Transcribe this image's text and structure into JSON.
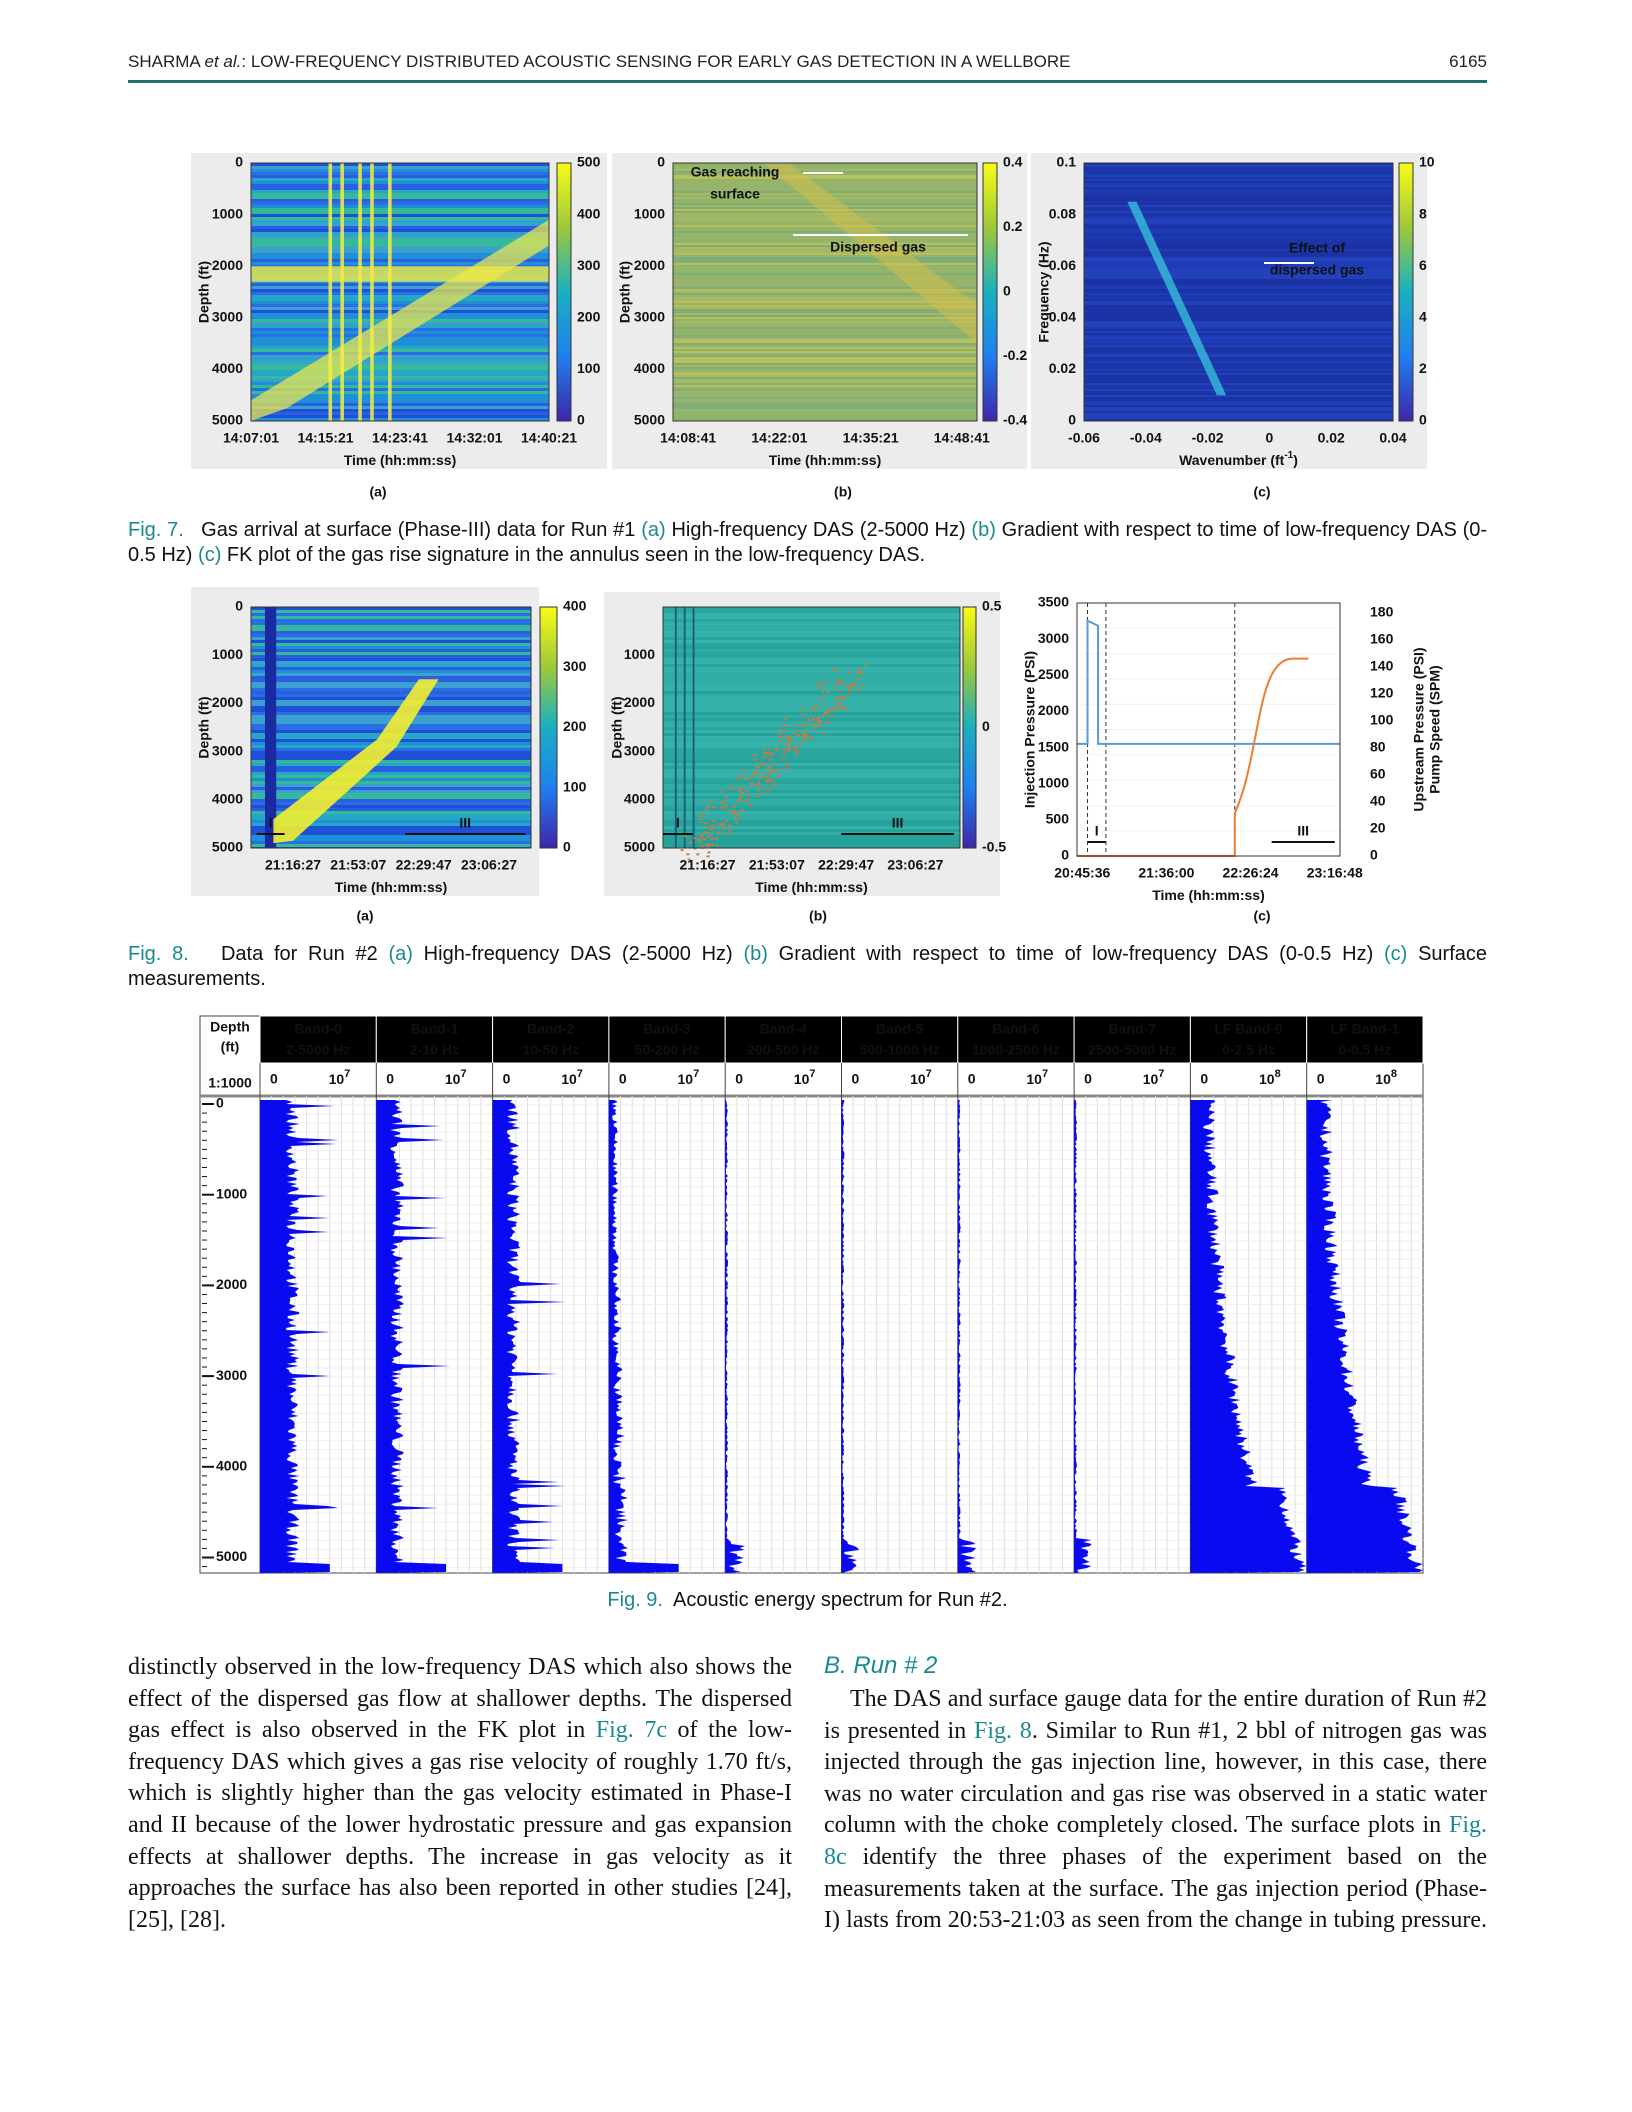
{
  "header": {
    "author": "SHARMA ",
    "etal": "et al.",
    "title": ": LOW-FREQUENCY DISTRIBUTED ACOUSTIC SENSING FOR EARLY GAS DETECTION IN A WELLBORE",
    "page": "6165"
  },
  "fig7": {
    "panels": [
      {
        "label": "(a)",
        "ylabel": "Depth (ft)",
        "yticks": [
          0,
          1000,
          2000,
          3000,
          4000,
          5000
        ],
        "xticks": [
          "14:07:01",
          "14:15:21",
          "14:23:41",
          "14:32:01",
          "14:40:21"
        ],
        "xlabel": "Time (hh:mm:ss)",
        "cbticks": [
          500,
          400,
          300,
          200,
          100,
          0
        ]
      },
      {
        "label": "(b)",
        "ylabel": "Depth (ft)",
        "yticks": [
          0,
          1000,
          2000,
          3000,
          4000,
          5000
        ],
        "xticks": [
          "14:08:41",
          "14:22:01",
          "14:35:21",
          "14:48:41"
        ],
        "xlabel": "Time (hh:mm:ss)",
        "cbticks": [
          0.4,
          0.2,
          0,
          -0.2,
          -0.4
        ],
        "annotations": [
          "Gas reaching",
          "surface",
          "Dispersed gas"
        ]
      },
      {
        "label": "(c)",
        "ylabel": "Frequency (Hz)",
        "yticks": [
          0.1,
          0.08,
          0.06,
          0.04,
          0.02,
          0
        ],
        "xticks": [
          -0.06,
          -0.04,
          -0.02,
          0,
          0.02,
          0.04
        ],
        "xlabel": "Wavenumber (ft",
        "xlabel_sup": "-1",
        "xlabel_end": ")",
        "cbticks": [
          10,
          8,
          6,
          4,
          2,
          0
        ],
        "annotations": [
          "Effect of",
          "dispersed gas"
        ]
      }
    ],
    "caption": [
      {
        "t": "Fig. 7.",
        "link": true
      },
      {
        "t": "   Gas arrival at surface (Phase-III) data for Run #1 "
      },
      {
        "t": "(a)",
        "link": true
      },
      {
        "t": " High-frequency DAS (2-5000 Hz) "
      },
      {
        "t": "(b)",
        "link": true
      },
      {
        "t": " Gradient with respect to time of low-frequency DAS (0-0.5 Hz) "
      },
      {
        "t": "(c)",
        "link": true
      },
      {
        "t": " FK plot of the gas rise signature in the annulus seen in the low-frequency DAS."
      }
    ]
  },
  "fig8": {
    "panels": [
      {
        "label": "(a)",
        "ylabel": "Depth (ft)",
        "yticks": [
          0,
          1000,
          2000,
          3000,
          4000,
          5000
        ],
        "xticks": [
          "21:16:27",
          "21:53:07",
          "22:29:47",
          "23:06:27"
        ],
        "xlabel": "Time (hh:mm:ss)",
        "cbticks": [
          400,
          300,
          200,
          100,
          0
        ],
        "markers": [
          "I",
          "III"
        ]
      },
      {
        "label": "(b)",
        "ylabel": "Depth (ft)",
        "yticks": [
          1000,
          2000,
          3000,
          4000,
          5000
        ],
        "xticks": [
          "21:16:27",
          "21:53:07",
          "22:29:47",
          "23:06:27"
        ],
        "xlabel": "Time (hh:mm:ss)",
        "cbticks": [
          0.5,
          0,
          -0.5
        ],
        "markers": [
          "I",
          "III"
        ]
      },
      {
        "label": "(c)",
        "ylabel": "Injection Pressure (PSI)",
        "y2label": [
          "Upstream Pressure (PSI)",
          "Pump Speed (SPM)"
        ],
        "yticks": [
          3500,
          3000,
          2500,
          2000,
          1500,
          1000,
          500,
          0
        ],
        "y2ticks": [
          180,
          160,
          140,
          120,
          100,
          80,
          60,
          40,
          20,
          0
        ],
        "xticks": [
          "20:45:36",
          "21:36:00",
          "22:26:24",
          "23:16:48"
        ],
        "xlabel": "Time (hh:mm:ss)",
        "markers": [
          "I",
          "III"
        ]
      }
    ],
    "caption": [
      {
        "t": "Fig. 8.",
        "link": true
      },
      {
        "t": "   Data for Run #2 "
      },
      {
        "t": "(a)",
        "link": true
      },
      {
        "t": " High-frequency DAS (2-5000 Hz) "
      },
      {
        "t": "(b)",
        "link": true
      },
      {
        "t": " Gradient with respect to time of low-frequency DAS (0-0.5 Hz) "
      },
      {
        "t": "(c)",
        "link": true
      },
      {
        "t": " Surface measurements."
      }
    ]
  },
  "fig9": {
    "depth_header": [
      "Depth",
      "(ft)"
    ],
    "scale": "1:1000",
    "depth_ticks": [
      0,
      1000,
      2000,
      3000,
      4000,
      5000
    ],
    "bands": [
      {
        "name": "Band-0",
        "range": "2-5000 Hz",
        "min": "0",
        "max": "10",
        "exp": "7"
      },
      {
        "name": "Band-1",
        "range": "2-10 Hz",
        "min": "0",
        "max": "10",
        "exp": "7"
      },
      {
        "name": "Band-2",
        "range": "10-50 Hz",
        "min": "0",
        "max": "10",
        "exp": "7"
      },
      {
        "name": "Band-3",
        "range": "50-200 Hz",
        "min": "0",
        "max": "10",
        "exp": "7"
      },
      {
        "name": "Band-4",
        "range": "200-500 Hz",
        "min": "0",
        "max": "10",
        "exp": "7"
      },
      {
        "name": "Band-5",
        "range": "500-1000 Hz",
        "min": "0",
        "max": "10",
        "exp": "7"
      },
      {
        "name": "Band-6",
        "range": "1000-2500 Hz",
        "min": "0",
        "max": "10",
        "exp": "7"
      },
      {
        "name": "Band-7",
        "range": "2500-5000 Hz",
        "min": "0",
        "max": "10",
        "exp": "7"
      },
      {
        "name": "LF Band-0",
        "range": "0-2.5 Hz",
        "min": "0",
        "max": "10",
        "exp": "8"
      },
      {
        "name": "LF Band-1",
        "range": "0-0.5 Hz",
        "min": "0",
        "max": "10",
        "exp": "8"
      }
    ],
    "caption": [
      {
        "t": "Fig. 9.",
        "link": true
      },
      {
        "t": "  Acoustic energy spectrum for Run #2."
      }
    ]
  },
  "body": {
    "left": [
      {
        "t": "distinctly observed in the low-frequency DAS which also shows the effect of the dispersed gas flow at shallower depths. The dispersed gas effect is also observed in the FK plot in "
      },
      {
        "t": "Fig. 7c",
        "link": true
      },
      {
        "t": " of the low-frequency DAS which gives a gas rise velocity of roughly 1.70 ft/s, which is slightly higher than the gas velocity estimated in Phase-I and II because of the lower hydrostatic pressure and gas expansion effects at shallower depths. The increase in gas velocity as it approaches the surface has also been reported in other studies [24], [25], [28]."
      }
    ],
    "heading": "B. Run # 2",
    "right": [
      {
        "t": "The DAS and surface gauge data for the entire duration of Run #2 is presented in "
      },
      {
        "t": "Fig. 8",
        "link": true
      },
      {
        "t": ". Similar to Run #1, 2 bbl of nitrogen gas was injected through the gas injection line, however, in this case, there was no water circulation and gas rise was observed in a static water column with the choke completely closed. The surface plots in "
      },
      {
        "t": "Fig. 8c",
        "link": true
      },
      {
        "t": " identify the three phases of the experiment based on the measurements taken at the surface. The gas injection period (Phase-I) lasts from 20:53-21:03 as seen from the change in tubing pressure."
      }
    ]
  }
}
